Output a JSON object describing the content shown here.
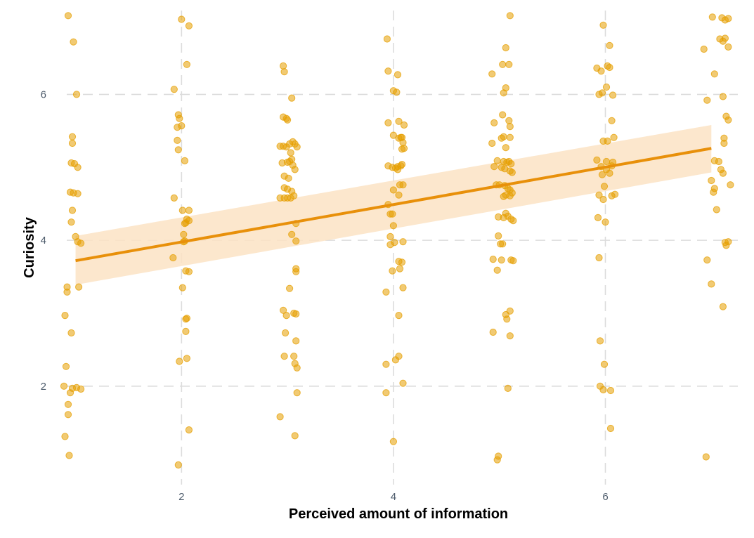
{
  "chart_data": {
    "type": "scatter",
    "title": "",
    "xlabel": "Perceived amount of information",
    "ylabel": "Curiosity",
    "xlim": [
      0.95,
      7.25
    ],
    "ylim": [
      0.65,
      7.15
    ],
    "xticks": [
      2,
      4,
      6
    ],
    "yticks": [
      2,
      4,
      6
    ],
    "grid": true,
    "legend": "none",
    "point_color": "#e69f00",
    "point_opacity": 0.55,
    "band_color": "#fbe3c4",
    "line_color": "#e8900a",
    "points": [
      [
        0.93,
        7.08
      ],
      [
        0.98,
        6.72
      ],
      [
        0.97,
        5.42
      ],
      [
        1.01,
        6.0
      ],
      [
        0.97,
        5.33
      ],
      [
        0.96,
        5.06
      ],
      [
        0.99,
        5.05
      ],
      [
        1.02,
        5.0
      ],
      [
        0.95,
        4.66
      ],
      [
        0.98,
        4.65
      ],
      [
        1.02,
        4.64
      ],
      [
        0.97,
        4.41
      ],
      [
        0.96,
        4.25
      ],
      [
        1.0,
        4.05
      ],
      [
        1.02,
        3.98
      ],
      [
        1.05,
        3.96
      ],
      [
        0.92,
        3.36
      ],
      [
        0.92,
        3.29
      ],
      [
        1.03,
        3.36
      ],
      [
        0.9,
        2.97
      ],
      [
        0.96,
        2.73
      ],
      [
        0.91,
        2.27
      ],
      [
        0.89,
        2.0
      ],
      [
        0.97,
        1.97
      ],
      [
        1.01,
        1.98
      ],
      [
        1.05,
        1.96
      ],
      [
        0.95,
        1.91
      ],
      [
        0.93,
        1.75
      ],
      [
        0.93,
        1.61
      ],
      [
        0.9,
        1.31
      ],
      [
        0.94,
        1.05
      ],
      [
        2.0,
        7.03
      ],
      [
        2.07,
        6.94
      ],
      [
        2.05,
        6.41
      ],
      [
        1.93,
        6.07
      ],
      [
        1.97,
        5.72
      ],
      [
        1.98,
        5.67
      ],
      [
        1.96,
        5.55
      ],
      [
        2.0,
        5.57
      ],
      [
        1.96,
        5.37
      ],
      [
        1.97,
        5.24
      ],
      [
        2.03,
        5.09
      ],
      [
        1.93,
        4.58
      ],
      [
        2.01,
        4.41
      ],
      [
        2.07,
        4.41
      ],
      [
        2.05,
        4.29
      ],
      [
        2.07,
        4.27
      ],
      [
        2.03,
        4.23
      ],
      [
        2.04,
        4.24
      ],
      [
        2.02,
        4.08
      ],
      [
        2.02,
        3.98
      ],
      [
        2.03,
        3.99
      ],
      [
        1.92,
        3.76
      ],
      [
        2.04,
        3.58
      ],
      [
        2.07,
        3.57
      ],
      [
        2.01,
        3.35
      ],
      [
        2.04,
        2.92
      ],
      [
        2.05,
        2.93
      ],
      [
        2.04,
        2.75
      ],
      [
        2.05,
        2.38
      ],
      [
        1.98,
        2.34
      ],
      [
        2.07,
        1.4
      ],
      [
        1.97,
        0.92
      ],
      [
        2.96,
        6.39
      ],
      [
        2.97,
        6.31
      ],
      [
        3.04,
        5.95
      ],
      [
        2.96,
        5.69
      ],
      [
        2.99,
        5.67
      ],
      [
        3.0,
        5.65
      ],
      [
        2.93,
        5.29
      ],
      [
        2.96,
        5.29
      ],
      [
        2.99,
        5.28
      ],
      [
        3.02,
        5.32
      ],
      [
        3.05,
        5.35
      ],
      [
        3.07,
        5.32
      ],
      [
        3.09,
        5.28
      ],
      [
        3.03,
        5.2
      ],
      [
        3.04,
        5.11
      ],
      [
        2.95,
        5.06
      ],
      [
        3.0,
        5.07
      ],
      [
        3.02,
        5.08
      ],
      [
        3.05,
        5.03
      ],
      [
        3.07,
        4.97
      ],
      [
        2.97,
        4.88
      ],
      [
        3.01,
        4.85
      ],
      [
        2.97,
        4.72
      ],
      [
        3.0,
        4.7
      ],
      [
        3.04,
        4.67
      ],
      [
        2.93,
        4.58
      ],
      [
        2.97,
        4.58
      ],
      [
        3.0,
        4.58
      ],
      [
        3.03,
        4.58
      ],
      [
        3.06,
        4.61
      ],
      [
        3.08,
        4.23
      ],
      [
        3.04,
        4.08
      ],
      [
        3.08,
        3.99
      ],
      [
        3.08,
        3.61
      ],
      [
        3.08,
        3.57
      ],
      [
        3.02,
        3.34
      ],
      [
        2.96,
        3.04
      ],
      [
        2.99,
        2.97
      ],
      [
        3.06,
        3.0
      ],
      [
        3.08,
        2.99
      ],
      [
        3.08,
        2.62
      ],
      [
        2.98,
        2.73
      ],
      [
        2.97,
        2.41
      ],
      [
        3.06,
        2.41
      ],
      [
        3.07,
        2.31
      ],
      [
        3.09,
        2.25
      ],
      [
        3.09,
        1.91
      ],
      [
        2.93,
        1.58
      ],
      [
        3.07,
        1.32
      ],
      [
        3.94,
        6.76
      ],
      [
        3.95,
        6.32
      ],
      [
        4.04,
        6.27
      ],
      [
        4.0,
        6.05
      ],
      [
        4.03,
        6.03
      ],
      [
        3.95,
        5.61
      ],
      [
        4.05,
        5.63
      ],
      [
        4.1,
        5.58
      ],
      [
        4.0,
        5.44
      ],
      [
        4.05,
        5.4
      ],
      [
        4.07,
        5.41
      ],
      [
        4.08,
        5.41
      ],
      [
        4.09,
        5.34
      ],
      [
        4.08,
        5.25
      ],
      [
        4.1,
        5.26
      ],
      [
        3.95,
        5.02
      ],
      [
        3.99,
        5.0
      ],
      [
        4.02,
        4.99
      ],
      [
        4.04,
        5.01
      ],
      [
        4.07,
        5.02
      ],
      [
        4.08,
        5.04
      ],
      [
        4.04,
        4.97
      ],
      [
        4.06,
        4.76
      ],
      [
        4.09,
        4.76
      ],
      [
        4.0,
        4.69
      ],
      [
        4.05,
        4.62
      ],
      [
        3.95,
        4.49
      ],
      [
        3.97,
        4.36
      ],
      [
        3.99,
        4.36
      ],
      [
        4.0,
        4.2
      ],
      [
        3.97,
        4.05
      ],
      [
        4.01,
        3.97
      ],
      [
        4.09,
        3.98
      ],
      [
        3.97,
        3.94
      ],
      [
        4.05,
        3.71
      ],
      [
        4.08,
        3.7
      ],
      [
        4.06,
        3.61
      ],
      [
        3.99,
        3.58
      ],
      [
        4.09,
        3.35
      ],
      [
        3.93,
        3.29
      ],
      [
        4.05,
        2.97
      ],
      [
        4.05,
        2.41
      ],
      [
        3.93,
        2.3
      ],
      [
        4.02,
        2.36
      ],
      [
        4.09,
        2.04
      ],
      [
        3.93,
        1.91
      ],
      [
        4.0,
        1.24
      ],
      [
        5.1,
        7.08
      ],
      [
        5.06,
        6.64
      ],
      [
        5.03,
        6.41
      ],
      [
        5.09,
        6.41
      ],
      [
        4.93,
        6.28
      ],
      [
        5.06,
        6.09
      ],
      [
        5.04,
        6.02
      ],
      [
        5.03,
        5.72
      ],
      [
        4.95,
        5.61
      ],
      [
        5.09,
        5.64
      ],
      [
        5.1,
        5.56
      ],
      [
        5.04,
        5.42
      ],
      [
        5.02,
        5.4
      ],
      [
        5.1,
        5.41
      ],
      [
        4.93,
        5.33
      ],
      [
        5.06,
        5.27
      ],
      [
        4.98,
        5.09
      ],
      [
        5.04,
        5.08
      ],
      [
        5.07,
        5.07
      ],
      [
        5.09,
        5.08
      ],
      [
        5.11,
        5.05
      ],
      [
        4.95,
        5.01
      ],
      [
        5.02,
        5.0
      ],
      [
        5.05,
        4.98
      ],
      [
        5.1,
        4.95
      ],
      [
        5.12,
        4.93
      ],
      [
        4.97,
        4.76
      ],
      [
        5.0,
        4.76
      ],
      [
        5.05,
        4.75
      ],
      [
        5.08,
        4.71
      ],
      [
        5.1,
        4.69
      ],
      [
        5.12,
        4.65
      ],
      [
        5.1,
        4.61
      ],
      [
        5.06,
        4.62
      ],
      [
        5.04,
        4.6
      ],
      [
        5.06,
        4.37
      ],
      [
        5.04,
        4.31
      ],
      [
        5.08,
        4.33
      ],
      [
        4.99,
        4.32
      ],
      [
        5.11,
        4.29
      ],
      [
        5.13,
        4.27
      ],
      [
        4.99,
        4.06
      ],
      [
        5.01,
        3.95
      ],
      [
        5.03,
        3.95
      ],
      [
        4.94,
        3.74
      ],
      [
        5.02,
        3.73
      ],
      [
        5.11,
        3.73
      ],
      [
        5.13,
        3.72
      ],
      [
        4.98,
        3.59
      ],
      [
        5.1,
        3.03
      ],
      [
        5.06,
        2.98
      ],
      [
        5.07,
        2.92
      ],
      [
        4.94,
        2.74
      ],
      [
        5.1,
        2.69
      ],
      [
        5.08,
        1.97
      ],
      [
        4.99,
        1.04
      ],
      [
        4.98,
        0.99
      ],
      [
        5.98,
        6.95
      ],
      [
        6.04,
        6.67
      ],
      [
        6.02,
        6.39
      ],
      [
        5.92,
        6.36
      ],
      [
        5.96,
        6.32
      ],
      [
        6.04,
        6.37
      ],
      [
        6.01,
        6.1
      ],
      [
        5.94,
        6.0
      ],
      [
        5.97,
        6.02
      ],
      [
        6.07,
        5.99
      ],
      [
        6.06,
        5.64
      ],
      [
        5.98,
        5.36
      ],
      [
        6.02,
        5.36
      ],
      [
        6.08,
        5.41
      ],
      [
        5.92,
        5.1
      ],
      [
        6.01,
        5.08
      ],
      [
        6.07,
        5.07
      ],
      [
        6.06,
        5.02
      ],
      [
        5.96,
        5.01
      ],
      [
        6.01,
        4.97
      ],
      [
        6.04,
        4.92
      ],
      [
        5.97,
        4.9
      ],
      [
        5.99,
        4.74
      ],
      [
        5.94,
        4.62
      ],
      [
        6.06,
        4.61
      ],
      [
        6.09,
        4.63
      ],
      [
        5.98,
        4.56
      ],
      [
        5.93,
        4.31
      ],
      [
        6.0,
        4.25
      ],
      [
        5.94,
        3.76
      ],
      [
        5.95,
        2.62
      ],
      [
        5.99,
        2.3
      ],
      [
        5.95,
        2.0
      ],
      [
        5.98,
        1.95
      ],
      [
        6.05,
        1.94
      ],
      [
        6.05,
        1.42
      ],
      [
        7.01,
        7.06
      ],
      [
        7.1,
        7.05
      ],
      [
        7.13,
        7.02
      ],
      [
        7.16,
        7.04
      ],
      [
        7.08,
        6.76
      ],
      [
        7.13,
        6.77
      ],
      [
        7.11,
        6.73
      ],
      [
        7.16,
        6.65
      ],
      [
        6.93,
        6.62
      ],
      [
        7.03,
        6.28
      ],
      [
        7.11,
        5.97
      ],
      [
        6.96,
        5.92
      ],
      [
        7.14,
        5.7
      ],
      [
        7.16,
        5.65
      ],
      [
        7.12,
        5.4
      ],
      [
        7.12,
        5.33
      ],
      [
        7.03,
        5.09
      ],
      [
        7.07,
        5.08
      ],
      [
        7.09,
        4.97
      ],
      [
        7.11,
        4.92
      ],
      [
        7.0,
        4.82
      ],
      [
        7.03,
        4.71
      ],
      [
        7.18,
        4.76
      ],
      [
        7.02,
        4.66
      ],
      [
        7.05,
        4.42
      ],
      [
        7.13,
        3.97
      ],
      [
        7.16,
        3.98
      ],
      [
        7.14,
        3.93
      ],
      [
        6.96,
        3.73
      ],
      [
        7.0,
        3.4
      ],
      [
        7.11,
        3.09
      ],
      [
        6.95,
        1.03
      ]
    ],
    "fit": {
      "x_start": 1.0,
      "x_end": 7.0,
      "y_start": 3.72,
      "y_end": 5.26
    },
    "band": {
      "upper_start": 4.06,
      "upper_end": 5.58,
      "lower_start": 3.39,
      "lower_end": 4.93
    }
  }
}
